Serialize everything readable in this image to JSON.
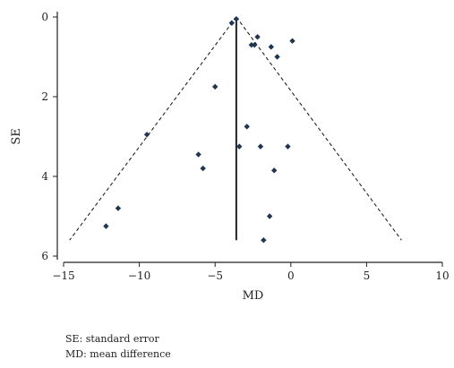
{
  "chart_data": {
    "type": "scatter",
    "subtype": "funnel-plot",
    "xlabel": "MD",
    "ylabel": "SE",
    "xlim": [
      -15,
      10
    ],
    "ylim": [
      0,
      6
    ],
    "y_reversed": true,
    "xticks": [
      -15,
      -10,
      -5,
      0,
      5,
      10
    ],
    "yticks": [
      0,
      2,
      4,
      6
    ],
    "grid": false,
    "points": [
      {
        "x": -3.9,
        "y": 0.15
      },
      {
        "x": -3.6,
        "y": 0.05
      },
      {
        "x": -2.2,
        "y": 0.5
      },
      {
        "x": -2.6,
        "y": 0.7
      },
      {
        "x": -2.4,
        "y": 0.7
      },
      {
        "x": -1.3,
        "y": 0.75
      },
      {
        "x": -0.9,
        "y": 1.0
      },
      {
        "x": 0.1,
        "y": 0.6
      },
      {
        "x": -5.0,
        "y": 1.75
      },
      {
        "x": -2.9,
        "y": 2.75
      },
      {
        "x": -3.4,
        "y": 3.25
      },
      {
        "x": -2.0,
        "y": 3.25
      },
      {
        "x": -0.2,
        "y": 3.25
      },
      {
        "x": -9.5,
        "y": 2.95
      },
      {
        "x": -6.1,
        "y": 3.45
      },
      {
        "x": -5.8,
        "y": 3.8
      },
      {
        "x": -1.1,
        "y": 3.85
      },
      {
        "x": -11.4,
        "y": 4.8
      },
      {
        "x": -12.2,
        "y": 5.25
      },
      {
        "x": -1.4,
        "y": 5.0
      },
      {
        "x": -1.8,
        "y": 5.6
      }
    ],
    "pooled_estimate": -3.6,
    "funnel_apex": [
      -3.6,
      0
    ],
    "funnel_left_base": [
      -14.6,
      5.6
    ],
    "funnel_right_base": [
      7.3,
      5.6
    ],
    "vertical_line_range": [
      0,
      5.6
    ],
    "point_color": "#1f3550",
    "line_color": "#222222"
  },
  "legend": {
    "line1": "SE: standard error",
    "line2": "MD: mean difference"
  }
}
